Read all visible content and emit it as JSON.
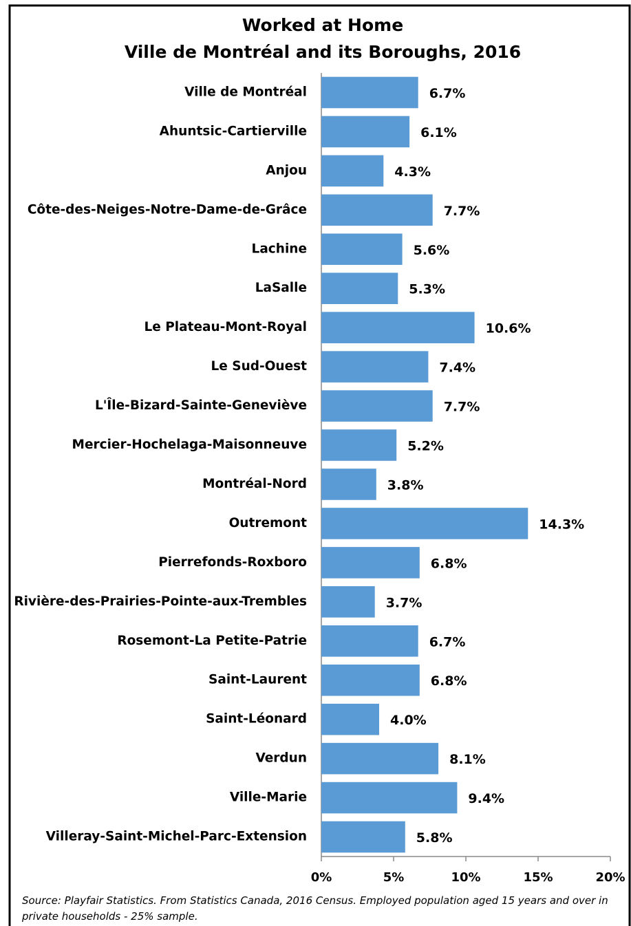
{
  "chart_data": {
    "type": "bar",
    "orientation": "horizontal",
    "title": "Worked at Home",
    "subtitle": "Ville de Montréal and its Boroughs, 2016",
    "categories": [
      "Ville de Montréal",
      "Ahuntsic-Cartierville",
      "Anjou",
      "Côte-des-Neiges-Notre-Dame-de-Grâce",
      "Lachine",
      "LaSalle",
      "Le Plateau-Mont-Royal",
      "Le Sud-Ouest",
      "L'Île-Bizard-Sainte-Geneviève",
      "Mercier-Hochelaga-Maisonneuve",
      "Montréal-Nord",
      "Outremont",
      "Pierrefonds-Roxboro",
      "Rivière-des-Prairies-Pointe-aux-Trembles",
      "Rosemont-La Petite-Patrie",
      "Saint-Laurent",
      "Saint-Léonard",
      "Verdun",
      "Ville-Marie",
      "Villeray-Saint-Michel-Parc-Extension"
    ],
    "values": [
      6.7,
      6.1,
      4.3,
      7.7,
      5.6,
      5.3,
      10.6,
      7.4,
      7.7,
      5.2,
      3.8,
      14.3,
      6.8,
      3.7,
      6.7,
      6.8,
      4.0,
      8.1,
      9.4,
      5.8
    ],
    "value_labels": [
      "6.7%",
      "6.1%",
      "4.3%",
      "7.7%",
      "5.6%",
      "5.3%",
      "10.6%",
      "7.4%",
      "7.7%",
      "5.2%",
      "3.8%",
      "14.3%",
      "6.8%",
      "3.7%",
      "6.7%",
      "6.8%",
      "4.0%",
      "8.1%",
      "9.4%",
      "5.8%"
    ],
    "color": "#5b9bd5",
    "xlim": [
      0,
      20
    ],
    "xticks": [
      {
        "value": 0,
        "label": "0%"
      },
      {
        "value": 5,
        "label": "5%"
      },
      {
        "value": 10,
        "label": "10%"
      },
      {
        "value": 15,
        "label": "15%"
      },
      {
        "value": 20,
        "label": "20%"
      }
    ],
    "grid": false,
    "source_note": "Source: Playfair Statistics. From Statistics Canada, 2016 Census. Employed population aged 15 years and over in private households - 25% sample."
  }
}
